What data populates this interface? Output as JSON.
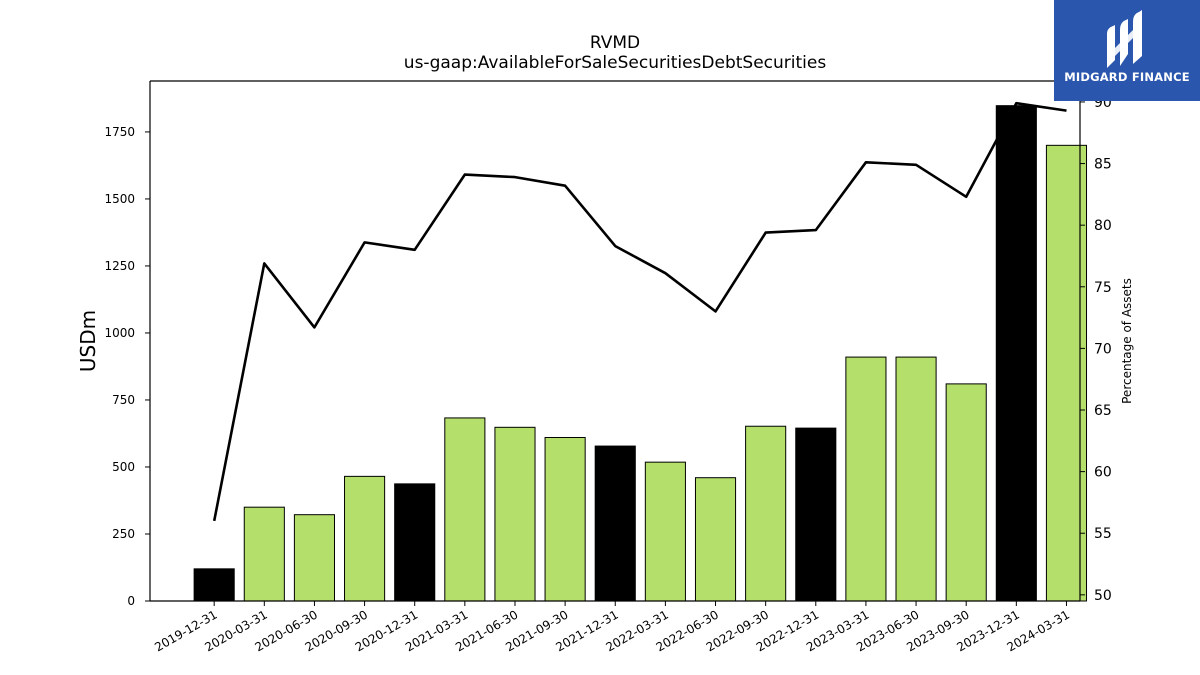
{
  "logo": {
    "text": "MIDGARD FINANCE",
    "icon": "midgard-logo-icon",
    "background": "#2a56ad"
  },
  "chart_data": {
    "type": "bar",
    "title": "RVMD",
    "subtitle": "us-gaap:AvailableForSaleSecuritiesDebtSecurities",
    "ylabel": "USDm",
    "y2label": "Percentage of Assets",
    "categories": [
      "2019-12-31",
      "2020-03-31",
      "2020-06-30",
      "2020-09-30",
      "2020-12-31",
      "2021-03-31",
      "2021-06-30",
      "2021-09-30",
      "2021-12-31",
      "2022-03-31",
      "2022-06-30",
      "2022-09-30",
      "2022-12-31",
      "2023-03-31",
      "2023-06-30",
      "2023-09-30",
      "2023-12-31",
      "2024-03-31"
    ],
    "series": [
      {
        "type": "bar",
        "values": [
          120,
          350,
          322,
          465,
          437,
          683,
          648,
          610,
          578,
          518,
          460,
          652,
          645,
          910,
          910,
          810,
          1848,
          1700
        ]
      },
      {
        "type": "line",
        "axis": "right",
        "values": [
          56.0,
          76.9,
          71.7,
          78.6,
          78.0,
          84.1,
          83.9,
          83.2,
          78.3,
          76.1,
          73.0,
          79.4,
          79.6,
          85.1,
          84.9,
          82.3,
          89.9,
          89.3
        ]
      }
    ],
    "bar_highlight": [
      true,
      false,
      false,
      false,
      true,
      false,
      false,
      false,
      true,
      false,
      false,
      false,
      true,
      false,
      false,
      false,
      true,
      false
    ],
    "colors": {
      "bar": "#b5df6b",
      "bar_highlight": "#000000",
      "line": "#000000"
    },
    "ylim": [
      0,
      1940
    ],
    "y2lim": [
      49.5,
      91.7
    ],
    "yticks": [
      0,
      250,
      500,
      750,
      1000,
      1250,
      1500,
      1750
    ],
    "yticks_labels": [
      "0",
      "250",
      "500",
      "750",
      "1000",
      "1250",
      "1500",
      "1750"
    ],
    "y2ticks": [
      50,
      55,
      60,
      65,
      70,
      75,
      80,
      85,
      90
    ],
    "y2ticks_labels": [
      "50",
      "55",
      "60",
      "65",
      "70",
      "75",
      "80",
      "85",
      "90"
    ],
    "grid": false,
    "legend": "none"
  }
}
